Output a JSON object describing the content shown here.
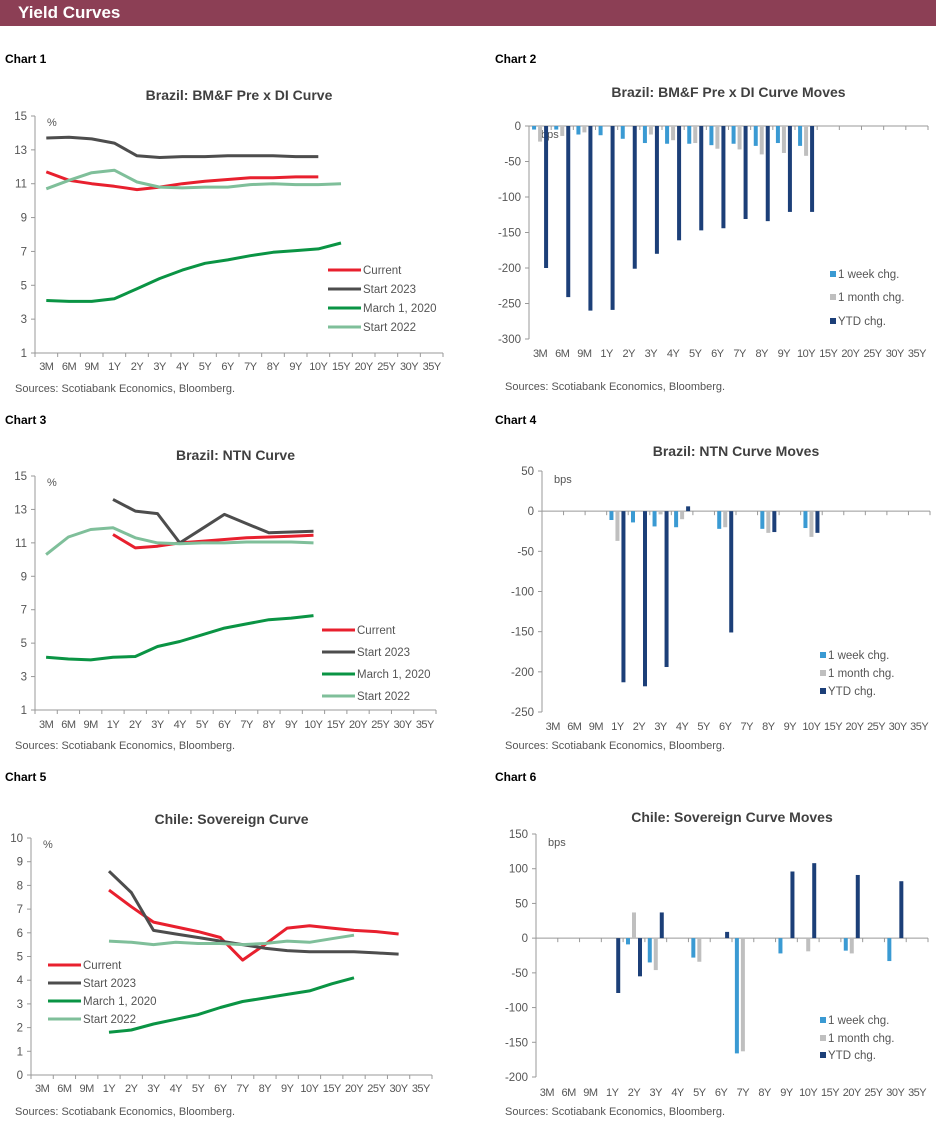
{
  "header": {
    "title": "Yield Curves"
  },
  "colors": {
    "header_bg": "#8c3f55",
    "current": "#e8202e",
    "start_2023": "#4d4d4d",
    "march_2020": "#0a9444",
    "start_2022": "#7fbf9a",
    "week": "#3a9ad3",
    "month": "#bfbfbf",
    "ytd": "#1c3f78"
  },
  "chart_labels": [
    "Chart 1",
    "Chart 2",
    "Chart 3",
    "Chart 4",
    "Chart 5",
    "Chart 6"
  ],
  "chart_data": [
    {
      "type": "line",
      "title": "Brazil: BM&F Pre x DI Curve",
      "unit": "%",
      "source": "Sources: Scotiabank Economics, Bloomberg.",
      "categories": [
        "3M",
        "6M",
        "9M",
        "1Y",
        "2Y",
        "3Y",
        "4Y",
        "5Y",
        "6Y",
        "7Y",
        "8Y",
        "9Y",
        "10Y",
        "15Y",
        "20Y",
        "25Y",
        "30Y",
        "35Y"
      ],
      "ylim": [
        1,
        15
      ],
      "yticks": [
        1,
        3,
        5,
        7,
        9,
        11,
        13,
        15
      ],
      "legend": "right",
      "series": [
        {
          "name": "Current",
          "color": "#e8202e",
          "values": [
            11.7,
            11.2,
            11.0,
            10.85,
            10.65,
            10.8,
            11.0,
            11.15,
            11.25,
            11.35,
            11.35,
            11.4,
            11.4,
            null,
            null,
            null,
            null,
            null
          ]
        },
        {
          "name": "Start 2023",
          "color": "#4d4d4d",
          "values": [
            13.7,
            13.75,
            13.65,
            13.4,
            12.65,
            12.55,
            12.6,
            12.6,
            12.65,
            12.65,
            12.65,
            12.6,
            12.6,
            null,
            null,
            null,
            null,
            null
          ]
        },
        {
          "name": "March 1, 2020",
          "color": "#0a9444",
          "values": [
            4.1,
            4.05,
            4.05,
            4.2,
            4.8,
            5.4,
            5.9,
            6.3,
            6.5,
            6.75,
            6.95,
            7.05,
            7.15,
            7.5,
            null,
            null,
            null,
            null
          ]
        },
        {
          "name": "Start 2022",
          "color": "#7fbf9a",
          "values": [
            10.7,
            11.2,
            11.65,
            11.8,
            11.1,
            10.8,
            10.75,
            10.8,
            10.8,
            10.95,
            11.0,
            10.95,
            10.95,
            11.0,
            null,
            null,
            null,
            null
          ]
        }
      ]
    },
    {
      "type": "bar",
      "title": "Brazil: BM&F Pre x DI Curve Moves",
      "unit": "bps",
      "source": "Sources: Scotiabank Economics, Bloomberg.",
      "categories": [
        "3M",
        "6M",
        "9M",
        "1Y",
        "2Y",
        "3Y",
        "4Y",
        "5Y",
        "6Y",
        "7Y",
        "8Y",
        "9Y",
        "10Y",
        "15Y",
        "20Y",
        "25Y",
        "30Y",
        "35Y"
      ],
      "ylim": [
        -300,
        0
      ],
      "yticks": [
        -300,
        -250,
        -200,
        -150,
        -100,
        -50,
        0
      ],
      "legend": "right",
      "series": [
        {
          "name": "1 week chg.",
          "color": "#3a9ad3",
          "values": [
            -5,
            -5,
            -12,
            -13,
            -18,
            -24,
            -25,
            -25,
            -27,
            -25,
            -28,
            -24,
            -28,
            null,
            null,
            null,
            null,
            null
          ]
        },
        {
          "name": "1 month chg.",
          "color": "#bfbfbf",
          "values": [
            -22,
            -14,
            -9,
            -1,
            -1,
            -12,
            -20,
            -24,
            -32,
            -33,
            -40,
            -38,
            -42,
            null,
            null,
            null,
            null,
            null
          ]
        },
        {
          "name": "YTD chg.",
          "color": "#1c3f78",
          "values": [
            -200,
            -241,
            -260,
            -259,
            -201,
            -180,
            -161,
            -147,
            -144,
            -131,
            -134,
            -121,
            -121,
            null,
            null,
            null,
            null,
            null
          ]
        }
      ]
    },
    {
      "type": "line",
      "title": "Brazil: NTN Curve",
      "unit": "%",
      "source": "Sources: Scotiabank Economics, Bloomberg.",
      "categories": [
        "3M",
        "6M",
        "9M",
        "1Y",
        "2Y",
        "3Y",
        "4Y",
        "5Y",
        "6Y",
        "7Y",
        "8Y",
        "9Y",
        "10Y",
        "15Y",
        "20Y",
        "25Y",
        "30Y",
        "35Y"
      ],
      "ylim": [
        1,
        15
      ],
      "yticks": [
        1,
        3,
        5,
        7,
        9,
        11,
        13,
        15
      ],
      "legend": "right",
      "series": [
        {
          "name": "Current",
          "color": "#e8202e",
          "values": [
            null,
            null,
            null,
            11.5,
            10.7,
            10.8,
            11.0,
            11.1,
            11.2,
            11.3,
            11.35,
            11.4,
            11.45,
            null,
            null,
            null,
            null,
            null
          ]
        },
        {
          "name": "Start 2023",
          "color": "#4d4d4d",
          "values": [
            null,
            null,
            null,
            13.6,
            12.9,
            12.75,
            11.0,
            11.85,
            12.7,
            12.15,
            11.6,
            11.65,
            11.7,
            null,
            null,
            null,
            null,
            null
          ]
        },
        {
          "name": "March 1, 2020",
          "color": "#0a9444",
          "values": [
            4.15,
            4.05,
            4.0,
            4.15,
            4.2,
            4.8,
            5.1,
            5.5,
            5.9,
            6.15,
            6.4,
            6.5,
            6.65,
            null,
            null,
            null,
            null,
            null
          ]
        },
        {
          "name": "Start 2022",
          "color": "#7fbf9a",
          "values": [
            10.3,
            11.35,
            11.8,
            11.9,
            11.3,
            11.0,
            10.95,
            11.0,
            11.0,
            11.05,
            11.05,
            11.05,
            11.0,
            null,
            null,
            null,
            null,
            null
          ]
        }
      ]
    },
    {
      "type": "bar",
      "title": "Brazil: NTN Curve Moves",
      "unit": "bps",
      "source": "Sources: Scotiabank Economics, Bloomberg.",
      "categories": [
        "3M",
        "6M",
        "9M",
        "1Y",
        "2Y",
        "3Y",
        "4Y",
        "5Y",
        "6Y",
        "7Y",
        "8Y",
        "9Y",
        "10Y",
        "15Y",
        "20Y",
        "25Y",
        "30Y",
        "35Y"
      ],
      "ylim": [
        -250,
        50
      ],
      "yticks": [
        -250,
        -200,
        -150,
        -100,
        -50,
        0,
        50
      ],
      "legend": "right",
      "series": [
        {
          "name": "1 week chg.",
          "color": "#3a9ad3",
          "values": [
            null,
            null,
            null,
            -11,
            -14,
            -19,
            -20,
            null,
            -22,
            null,
            -22,
            null,
            -21,
            null,
            null,
            null,
            null,
            null
          ]
        },
        {
          "name": "1 month chg.",
          "color": "#bfbfbf",
          "values": [
            null,
            null,
            null,
            -37,
            1,
            -4,
            -10,
            null,
            -20,
            null,
            -27,
            null,
            -32,
            null,
            null,
            null,
            null,
            null
          ]
        },
        {
          "name": "YTD chg.",
          "color": "#1c3f78",
          "values": [
            null,
            null,
            null,
            -213,
            -218,
            -194,
            6,
            null,
            -151,
            null,
            -26,
            null,
            -27,
            null,
            null,
            null,
            null,
            null
          ]
        }
      ]
    },
    {
      "type": "line",
      "title": "Chile: Sovereign Curve",
      "unit": "%",
      "source": "Sources: Scotiabank Economics, Bloomberg.",
      "categories": [
        "3M",
        "6M",
        "9M",
        "1Y",
        "2Y",
        "3Y",
        "4Y",
        "5Y",
        "6Y",
        "7Y",
        "8Y",
        "9Y",
        "10Y",
        "15Y",
        "20Y",
        "25Y",
        "30Y",
        "35Y"
      ],
      "ylim": [
        0,
        10
      ],
      "yticks": [
        0,
        1,
        2,
        3,
        4,
        5,
        6,
        7,
        8,
        9,
        10
      ],
      "legend": "left",
      "series": [
        {
          "name": "Current",
          "color": "#e8202e",
          "values": [
            null,
            null,
            null,
            7.8,
            7.1,
            6.45,
            6.25,
            6.05,
            5.8,
            4.85,
            5.5,
            6.2,
            6.3,
            6.2,
            6.1,
            6.05,
            5.95,
            null
          ]
        },
        {
          "name": "Start 2023",
          "color": "#4d4d4d",
          "values": [
            null,
            null,
            null,
            8.6,
            7.7,
            6.1,
            5.95,
            5.8,
            5.65,
            5.5,
            5.35,
            5.25,
            5.2,
            5.2,
            5.2,
            5.15,
            5.1,
            null
          ]
        },
        {
          "name": "March 1, 2020",
          "color": "#0a9444",
          "values": [
            null,
            null,
            null,
            1.8,
            1.9,
            2.15,
            2.35,
            2.55,
            2.85,
            3.1,
            3.25,
            3.4,
            3.55,
            3.85,
            4.1,
            null,
            null,
            null
          ]
        },
        {
          "name": "Start 2022",
          "color": "#7fbf9a",
          "values": [
            null,
            null,
            null,
            5.65,
            5.6,
            5.5,
            5.6,
            5.55,
            5.55,
            5.5,
            5.55,
            5.65,
            5.6,
            5.75,
            5.9,
            null,
            null,
            null
          ]
        }
      ]
    },
    {
      "type": "bar",
      "title": "Chile: Sovereign Curve Moves",
      "unit": "bps",
      "source": "Sources: Scotiabank Economics, Bloomberg.",
      "categories": [
        "3M",
        "6M",
        "9M",
        "1Y",
        "2Y",
        "3Y",
        "4Y",
        "5Y",
        "6Y",
        "7Y",
        "8Y",
        "9Y",
        "10Y",
        "15Y",
        "20Y",
        "25Y",
        "30Y",
        "35Y"
      ],
      "ylim": [
        -200,
        150
      ],
      "yticks": [
        -200,
        -150,
        -100,
        -50,
        0,
        50,
        100,
        150
      ],
      "legend": "right",
      "series": [
        {
          "name": "1 week chg.",
          "color": "#3a9ad3",
          "values": [
            null,
            null,
            null,
            null,
            -9,
            -35,
            null,
            -28,
            null,
            -166,
            null,
            -22,
            null,
            null,
            -18,
            null,
            -33,
            null
          ]
        },
        {
          "name": "1 month chg.",
          "color": "#bfbfbf",
          "values": [
            null,
            null,
            null,
            null,
            37,
            -46,
            null,
            -34,
            null,
            -163,
            null,
            null,
            -19,
            null,
            -22,
            null,
            null,
            null
          ]
        },
        {
          "name": "YTD chg.",
          "color": "#1c3f78",
          "values": [
            null,
            null,
            null,
            -79,
            -55,
            37,
            null,
            null,
            9,
            null,
            null,
            96,
            108,
            null,
            91,
            null,
            82,
            null
          ]
        }
      ]
    }
  ]
}
